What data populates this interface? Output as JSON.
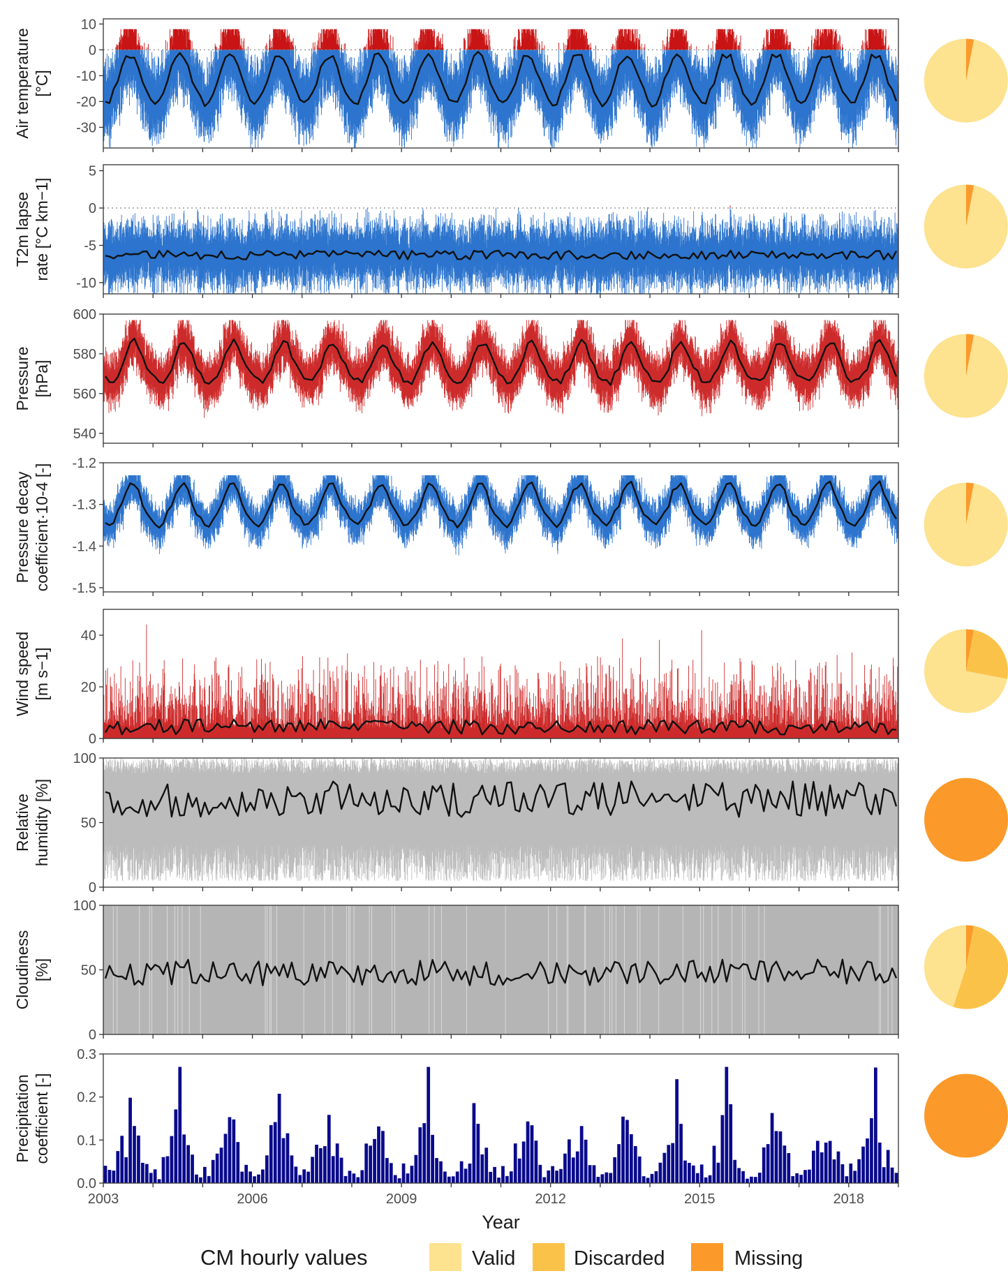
{
  "colors": {
    "blue": "#1565c8",
    "red": "#c81414",
    "grey": "#b5b5b5",
    "navy": "#0a0a8c",
    "black": "#111111",
    "valid": "#fde28f",
    "discarded": "#fbc24a",
    "missing": "#fb9a2a"
  },
  "legend": {
    "title": "CM hourly values",
    "items": [
      {
        "key": "valid",
        "label": "Valid",
        "color": "#fde28f"
      },
      {
        "key": "discarded",
        "label": "Discarded",
        "color": "#fbc24a"
      },
      {
        "key": "missing",
        "label": "Missing",
        "color": "#fb9a2a"
      }
    ]
  },
  "chart_data": [
    {
      "type": "line",
      "ylabel_lines": [
        "Air temperature",
        "[°C]"
      ],
      "ylim": [
        -38,
        12
      ],
      "yticks": [
        -30,
        -20,
        -10,
        0,
        10
      ],
      "zero_line": true,
      "raw_color": "blue",
      "above_zero_color": "red",
      "mean_monthly": {
        "series": "air_temperature",
        "annual_cycle": [
          -21,
          -20,
          -16,
          -12,
          -7,
          -3,
          -2,
          -3,
          -7,
          -12,
          -16,
          -19
        ],
        "min": -38,
        "max": 8
      },
      "proportions": {
        "valid": 0.97,
        "discarded": 0.0,
        "missing": 0.03
      }
    },
    {
      "type": "line",
      "ylabel_lines": [
        "T2m lapse",
        "rate [°C km−1]"
      ],
      "ylim": [
        -11.5,
        5.8
      ],
      "yticks": [
        -10,
        -5,
        0,
        5
      ],
      "zero_line": true,
      "raw_color": "blue",
      "above_zero_color": "red",
      "mean_monthly": {
        "series": "lapse_rate",
        "level": -6.3,
        "range": 0.6
      },
      "proportions": {
        "valid": 0.97,
        "discarded": 0.0,
        "missing": 0.03
      }
    },
    {
      "type": "line",
      "ylabel_lines": [
        "Pressure",
        "[hPa]"
      ],
      "ylim": [
        535,
        600
      ],
      "yticks": [
        540,
        560,
        580,
        600
      ],
      "zero_line": false,
      "raw_color": "red",
      "mean_monthly": {
        "series": "pressure",
        "annual_cycle": [
          567,
          566,
          566,
          569,
          573,
          579,
          584,
          586,
          584,
          579,
          574,
          570
        ],
        "min": 537,
        "max": 597
      },
      "proportions": {
        "valid": 0.97,
        "discarded": 0.0,
        "missing": 0.03
      }
    },
    {
      "type": "line",
      "ylabel_lines": [
        "Pressure decay",
        "coefficient·10-4 [-]"
      ],
      "ylim": [
        -1.51,
        -1.2
      ],
      "yticks": [
        -1.5,
        -1.4,
        -1.3,
        -1.2
      ],
      "zero_line": false,
      "raw_color": "blue",
      "mean_monthly": {
        "series": "pressure_decay",
        "annual_cycle": [
          -1.345,
          -1.35,
          -1.34,
          -1.32,
          -1.3,
          -1.27,
          -1.255,
          -1.25,
          -1.27,
          -1.3,
          -1.32,
          -1.335
        ],
        "min": -1.48,
        "max": -1.23
      },
      "proportions": {
        "valid": 0.97,
        "discarded": 0.0,
        "missing": 0.03
      }
    },
    {
      "type": "line",
      "ylabel_lines": [
        "Wind speed",
        "[m s−1]"
      ],
      "ylim": [
        0,
        50
      ],
      "yticks": [
        0,
        20,
        40
      ],
      "zero_line": false,
      "raw_color": "red",
      "mean_monthly": {
        "series": "wind_speed",
        "level": 4.5,
        "range": 3,
        "min": 0,
        "max": 48
      },
      "proportions": {
        "valid": 0.72,
        "discarded": 0.25,
        "missing": 0.03
      }
    },
    {
      "type": "line",
      "ylabel_lines": [
        "Relative",
        "humidity [%]"
      ],
      "ylim": [
        0,
        100
      ],
      "yticks": [
        0,
        50,
        100
      ],
      "zero_line": false,
      "raw_color": "grey",
      "mean_monthly": {
        "series": "relative_humidity",
        "level": 68,
        "range": 14,
        "min": 40,
        "max": 87
      },
      "proportions": {
        "valid": 0.0,
        "discarded": 0.0,
        "missing": 1.0
      }
    },
    {
      "type": "line",
      "ylabel_lines": [
        "Cloudiness",
        "[%]"
      ],
      "ylim": [
        0,
        100
      ],
      "yticks": [
        0,
        50,
        100
      ],
      "zero_line": false,
      "raw_color": "grey",
      "panel_fill": "grey",
      "mean_monthly": {
        "series": "cloudiness",
        "level": 48,
        "range": 10,
        "min": 14,
        "max": 75
      },
      "proportions": {
        "valid": 0.45,
        "discarded": 0.52,
        "missing": 0.03
      }
    },
    {
      "type": "bar",
      "ylabel_lines": [
        "Precipitation",
        "coefficient [-]"
      ],
      "ylim": [
        0,
        0.3
      ],
      "yticks": [
        0,
        0.1,
        0.2,
        0.3
      ],
      "tick_labels": [
        "0.0",
        "0.1",
        "0.2",
        "0.3"
      ],
      "bar_color": "navy",
      "monthly_values": {
        "series": "precipitation",
        "annual_cycle": [
          0.03,
          0.02,
          0.04,
          0.06,
          0.09,
          0.13,
          0.16,
          0.12,
          0.08,
          0.05,
          0.03,
          0.02
        ],
        "max": 0.27
      },
      "proportions": {
        "valid": 0.0,
        "discarded": 0.0,
        "missing": 1.0
      }
    }
  ],
  "x_axis": {
    "title": "Year",
    "xlim": [
      2003.0,
      2019.0
    ],
    "ticks": [
      2003,
      2006,
      2009,
      2012,
      2015,
      2018
    ],
    "tick_labels": [
      "2003",
      "2006",
      "2009",
      "2012",
      "2015",
      "2018"
    ]
  }
}
